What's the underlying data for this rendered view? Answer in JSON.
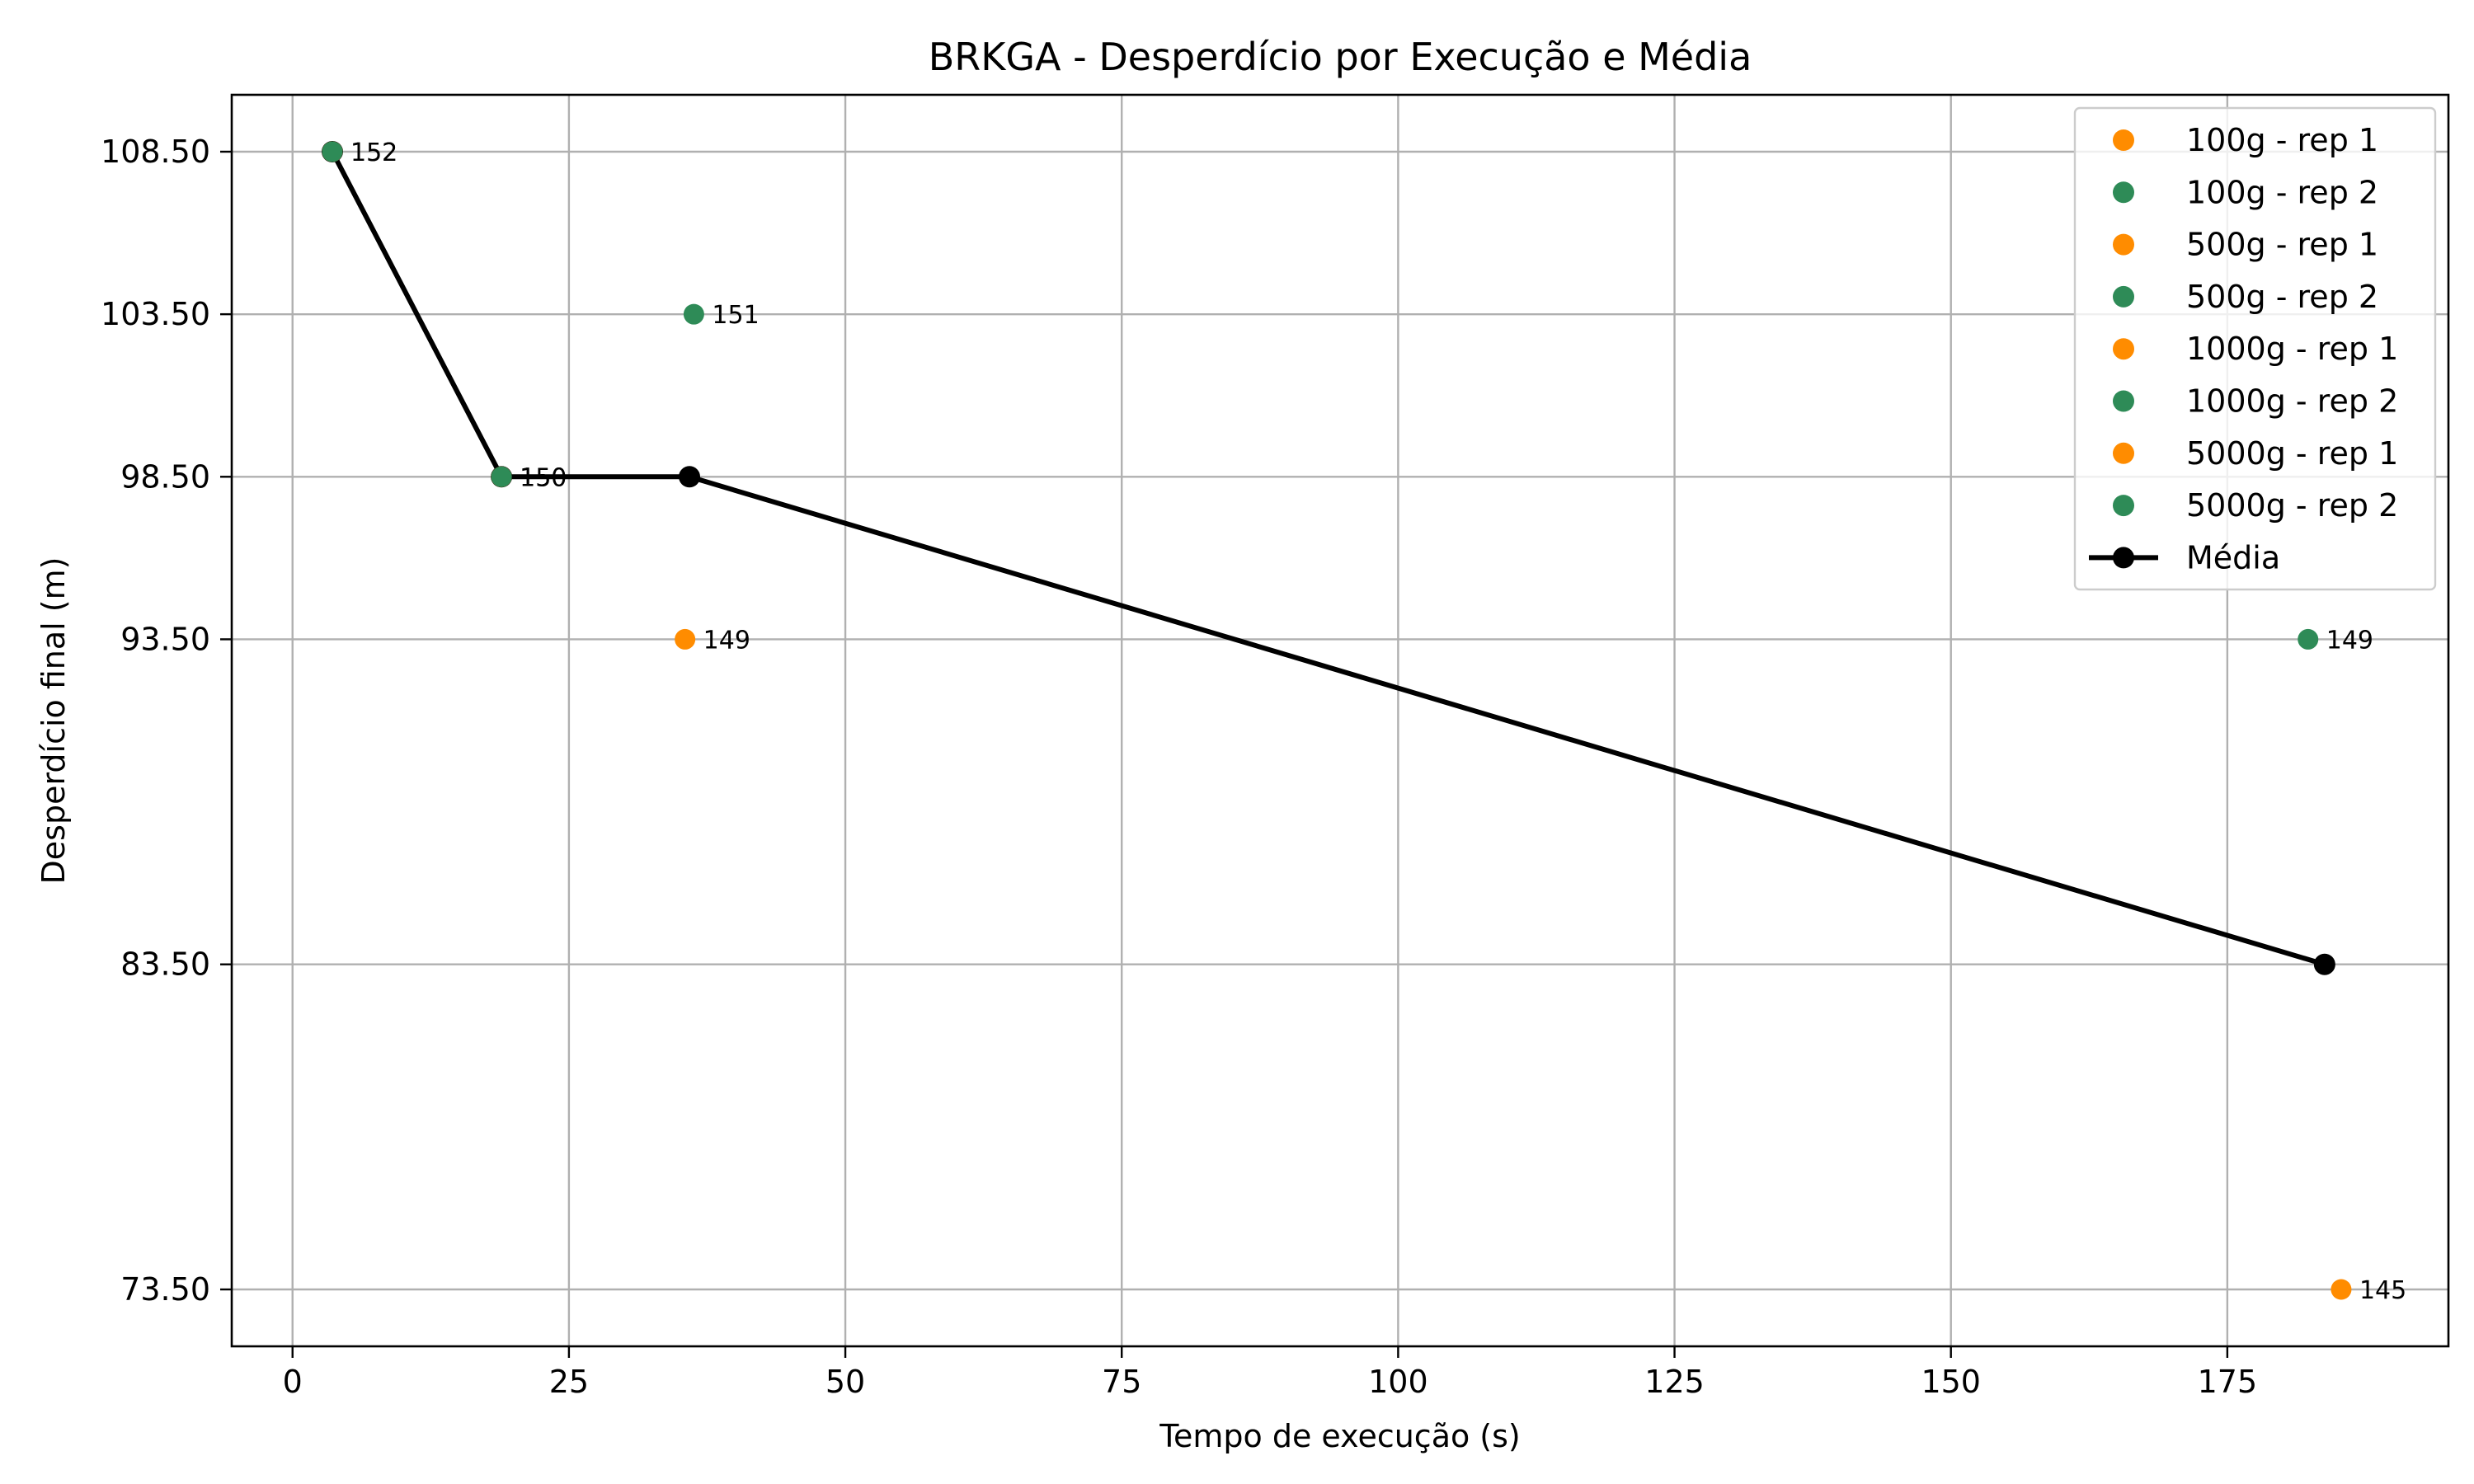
{
  "chart_data": {
    "type": "scatter",
    "title": "BRKGA - Desperdício por Execução e Média",
    "xlabel": "Tempo de execução (s)",
    "ylabel": "Desperdício final (m)",
    "xlim": [
      -5.5,
      195
    ],
    "ylim": [
      71.75,
      110.25
    ],
    "xticks": [
      0,
      25,
      50,
      75,
      100,
      125,
      150,
      175
    ],
    "yticks": [
      "73.50",
      "83.50",
      "93.50",
      "98.50",
      "103.50",
      "108.50"
    ],
    "grid": true,
    "legend_position": "top-right",
    "colors": {
      "rep1": "#ff8c00",
      "rep2": "#2e8b57",
      "mean": "#000000"
    },
    "series": [
      {
        "name": "100g - rep 1",
        "color": "#ff8c00",
        "points": [
          {
            "x": 3.6,
            "y": 108.5,
            "label": "152"
          }
        ]
      },
      {
        "name": "100g - rep 2",
        "color": "#2e8b57",
        "points": [
          {
            "x": 3.6,
            "y": 108.5,
            "label": "152"
          }
        ]
      },
      {
        "name": "500g - rep 1",
        "color": "#ff8c00",
        "points": [
          {
            "x": 18.9,
            "y": 98.5,
            "label": "150"
          }
        ]
      },
      {
        "name": "500g - rep 2",
        "color": "#2e8b57",
        "points": [
          {
            "x": 18.9,
            "y": 98.5,
            "label": "150"
          }
        ]
      },
      {
        "name": "1000g - rep 1",
        "color": "#ff8c00",
        "points": [
          {
            "x": 35.5,
            "y": 93.5,
            "label": "149"
          }
        ]
      },
      {
        "name": "1000g - rep 2",
        "color": "#2e8b57",
        "points": [
          {
            "x": 36.3,
            "y": 103.5,
            "label": "151"
          }
        ]
      },
      {
        "name": "5000g - rep 1",
        "color": "#ff8c00",
        "points": [
          {
            "x": 185.3,
            "y": 73.5,
            "label": "145"
          }
        ]
      },
      {
        "name": "5000g - rep 2",
        "color": "#2e8b57",
        "points": [
          {
            "x": 182.3,
            "y": 93.5,
            "label": "149"
          }
        ]
      }
    ],
    "mean": {
      "name": "Média",
      "color": "#000000",
      "points": [
        {
          "x": 3.6,
          "y": 108.5
        },
        {
          "x": 18.9,
          "y": 98.5
        },
        {
          "x": 35.9,
          "y": 98.5
        },
        {
          "x": 183.8,
          "y": 83.5
        }
      ]
    }
  }
}
